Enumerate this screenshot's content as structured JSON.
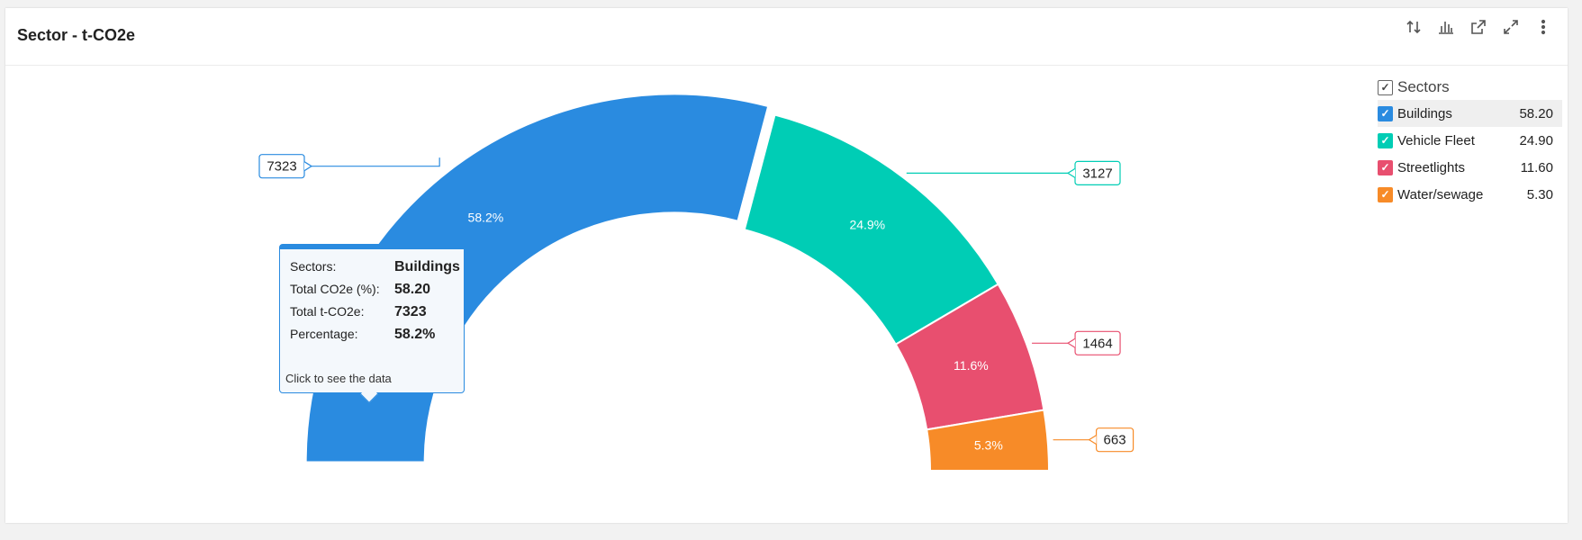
{
  "header": {
    "title": "Sector - t-CO2e",
    "tools": [
      "sort-icon",
      "chart-type-icon",
      "open-external-icon",
      "expand-icon",
      "more-vertical-icon"
    ]
  },
  "legend": {
    "title": "Sectors",
    "items": [
      {
        "label": "Buildings",
        "value": "58.20",
        "color": "#2a8be0"
      },
      {
        "label": "Vehicle Fleet",
        "value": "24.90",
        "color": "#00cdb5"
      },
      {
        "label": "Streetlights",
        "value": "11.60",
        "color": "#e84f6f"
      },
      {
        "label": "Water/sewage",
        "value": "5.30",
        "color": "#f78b28"
      }
    ]
  },
  "tooltip": {
    "rows": [
      {
        "key": "Sectors:",
        "value": "Buildings"
      },
      {
        "key": "Total CO2e (%):",
        "value": "58.20"
      },
      {
        "key": "Total t-CO2e:",
        "value": "7323"
      },
      {
        "key": "Percentage:",
        "value": "58.2%"
      }
    ],
    "note": "Click to see the data"
  },
  "chart_data": {
    "type": "pie",
    "subtype": "half-donut",
    "series_name": "Sectors",
    "categories": [
      "Buildings",
      "Vehicle Fleet",
      "Streetlights",
      "Water/sewage"
    ],
    "values": [
      7323,
      3127,
      1464,
      663
    ],
    "percent_labels": [
      "58.2%",
      "24.9%",
      "11.6%",
      "5.3%"
    ],
    "value_labels": [
      "7323",
      "3127",
      "1464",
      "663"
    ],
    "colors": [
      "#2a8be0",
      "#00cdb5",
      "#e84f6f",
      "#f78b28"
    ],
    "highlighted": "Buildings",
    "legend_position": "top-right"
  }
}
